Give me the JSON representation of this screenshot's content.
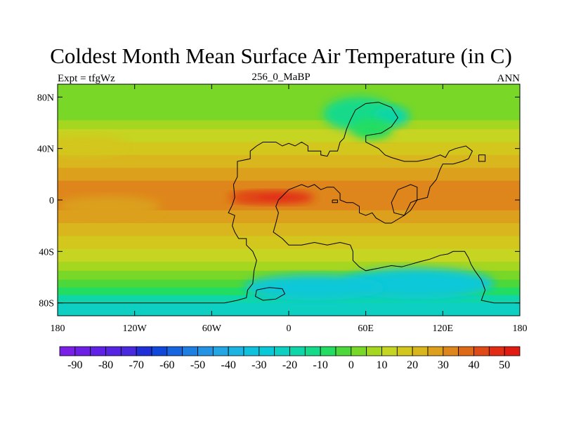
{
  "title": "Coldest Month Mean Surface Air Temperature (in C)",
  "subtitle_left": "Expt = tfgWz",
  "subtitle_center": "256_0_MaBP",
  "subtitle_right": "ANN",
  "map": {
    "lon_range": [
      -180,
      180
    ],
    "lat_range": [
      -90,
      90
    ],
    "x_ticks": [
      {
        "value": -180,
        "label": "180"
      },
      {
        "value": -120,
        "label": "120W"
      },
      {
        "value": -60,
        "label": "60W"
      },
      {
        "value": 0,
        "label": "0"
      },
      {
        "value": 60,
        "label": "60E"
      },
      {
        "value": 120,
        "label": "120E"
      },
      {
        "value": 180,
        "label": "180"
      }
    ],
    "y_ticks": [
      {
        "value": 80,
        "label": "80N"
      },
      {
        "value": 40,
        "label": "40N"
      },
      {
        "value": 0,
        "label": "0"
      },
      {
        "value": -40,
        "label": "40S"
      },
      {
        "value": -80,
        "label": "80S"
      }
    ]
  },
  "colorbar": {
    "levels": [
      -90,
      -85,
      -80,
      -75,
      -70,
      -65,
      -60,
      -55,
      -50,
      -45,
      -40,
      -35,
      -30,
      -25,
      -20,
      -15,
      -10,
      -5,
      0,
      5,
      10,
      15,
      20,
      25,
      30,
      35,
      40,
      45,
      50
    ],
    "labels": [
      "-90",
      "-80",
      "-70",
      "-60",
      "-50",
      "-40",
      "-30",
      "-20",
      "-10",
      "0",
      "10",
      "20",
      "30",
      "40",
      "50"
    ],
    "colors": [
      "#7a1fe6",
      "#6d1fe6",
      "#6020e6",
      "#5525e3",
      "#4a28df",
      "#2030d8",
      "#1048dc",
      "#1865e0",
      "#1e7fe3",
      "#2393e5",
      "#22a6e4",
      "#1cb4e2",
      "#10c1de",
      "#09c8d8",
      "#0ed0c2",
      "#0fd6a8",
      "#15da8a",
      "#22dd62",
      "#4cd83a",
      "#78d727",
      "#a5d620",
      "#c6d422",
      "#d3c61d",
      "#d9b51e",
      "#dca01c",
      "#de861b",
      "#de6a18",
      "#e04a16",
      "#e22c14",
      "#e01b12"
    ]
  },
  "field": {
    "lat_bands": [
      {
        "lat": 90,
        "value": 3
      },
      {
        "lat": 80,
        "value": 3
      },
      {
        "lat": 70,
        "value": 3
      },
      {
        "lat": 62,
        "value": 6
      },
      {
        "lat": 55,
        "value": 11
      },
      {
        "lat": 45,
        "value": 17
      },
      {
        "lat": 35,
        "value": 21
      },
      {
        "lat": 25,
        "value": 26
      },
      {
        "lat": 15,
        "value": 29
      },
      {
        "lat": 5,
        "value": 31
      },
      {
        "lat": 0,
        "value": 32
      },
      {
        "lat": -8,
        "value": 30
      },
      {
        "lat": -18,
        "value": 26
      },
      {
        "lat": -28,
        "value": 22
      },
      {
        "lat": -38,
        "value": 17
      },
      {
        "lat": -48,
        "value": 11
      },
      {
        "lat": -55,
        "value": 6
      },
      {
        "lat": -62,
        "value": 2
      },
      {
        "lat": -68,
        "value": -6
      },
      {
        "lat": -74,
        "value": -14
      },
      {
        "lat": -80,
        "value": -21
      },
      {
        "lat": -86,
        "value": -23
      },
      {
        "lat": -90,
        "value": -24
      }
    ],
    "anomalies": [
      {
        "lon": 55,
        "lat": 67,
        "rx": 28,
        "ry": 13,
        "value": -15
      },
      {
        "lon": 80,
        "lat": 65,
        "rx": 14,
        "ry": 8,
        "value": -20
      },
      {
        "lon": 65,
        "lat": 55,
        "rx": 16,
        "ry": 8,
        "value": -10
      },
      {
        "lon": 100,
        "lat": -65,
        "rx": 60,
        "ry": 12,
        "value": -30
      },
      {
        "lon": 20,
        "lat": -68,
        "rx": 55,
        "ry": 10,
        "value": -28
      },
      {
        "lon": -10,
        "lat": 2,
        "rx": 30,
        "ry": 5,
        "value": 46
      },
      {
        "lon": -35,
        "lat": 2,
        "rx": 12,
        "ry": 4,
        "value": 42
      },
      {
        "lon": -160,
        "lat": 42,
        "rx": 35,
        "ry": 8,
        "value": 18
      },
      {
        "lon": -140,
        "lat": -5,
        "rx": 40,
        "ry": 8,
        "value": 28
      }
    ]
  },
  "coastlines": [
    [
      [
        -50,
        -80
      ],
      [
        -40,
        -78
      ],
      [
        -33,
        -76
      ],
      [
        -32,
        -70
      ],
      [
        -28,
        -65
      ],
      [
        -27,
        -55
      ],
      [
        -25,
        -47
      ],
      [
        -28,
        -40
      ],
      [
        -33,
        -35
      ],
      [
        -33,
        -30
      ],
      [
        -39,
        -30
      ],
      [
        -42,
        -25
      ],
      [
        -44,
        -20
      ],
      [
        -42,
        -12
      ],
      [
        -47,
        -10
      ],
      [
        -44,
        -4
      ],
      [
        -42,
        2
      ],
      [
        -43,
        12
      ],
      [
        -40,
        18
      ],
      [
        -40,
        30
      ],
      [
        -30,
        32
      ],
      [
        -30,
        38
      ],
      [
        -25,
        42
      ],
      [
        -20,
        45
      ],
      [
        -10,
        45
      ],
      [
        -5,
        42
      ],
      [
        0,
        44
      ],
      [
        5,
        42
      ],
      [
        10,
        45
      ],
      [
        15,
        42
      ],
      [
        15,
        38
      ],
      [
        25,
        38
      ],
      [
        25,
        35
      ],
      [
        30,
        34
      ],
      [
        32,
        38
      ],
      [
        38,
        38
      ],
      [
        40,
        45
      ],
      [
        43,
        48
      ],
      [
        45,
        55
      ],
      [
        48,
        62
      ],
      [
        52,
        70
      ],
      [
        60,
        75
      ],
      [
        70,
        76
      ],
      [
        80,
        72
      ],
      [
        85,
        64
      ],
      [
        80,
        57
      ],
      [
        72,
        52
      ],
      [
        60,
        50
      ],
      [
        60,
        45
      ],
      [
        70,
        40
      ],
      [
        75,
        35
      ],
      [
        80,
        33
      ],
      [
        90,
        30
      ],
      [
        100,
        30
      ],
      [
        110,
        32
      ],
      [
        118,
        35
      ],
      [
        122,
        33
      ],
      [
        125,
        38
      ],
      [
        130,
        40
      ],
      [
        138,
        42
      ],
      [
        143,
        38
      ],
      [
        140,
        32
      ],
      [
        135,
        30
      ],
      [
        128,
        28
      ],
      [
        120,
        28
      ],
      [
        118,
        24
      ],
      [
        115,
        16
      ],
      [
        110,
        10
      ],
      [
        108,
        2
      ],
      [
        100,
        0
      ],
      [
        95,
        -2
      ],
      [
        92,
        -8
      ],
      [
        90,
        -12
      ],
      [
        85,
        -15
      ],
      [
        80,
        -18
      ],
      [
        75,
        -18
      ],
      [
        68,
        -14
      ],
      [
        65,
        -10
      ],
      [
        60,
        -12
      ],
      [
        55,
        -10
      ],
      [
        55,
        -5
      ],
      [
        50,
        -2
      ],
      [
        45,
        -2
      ],
      [
        40,
        0
      ],
      [
        40,
        5
      ],
      [
        35,
        10
      ],
      [
        30,
        10
      ],
      [
        25,
        8
      ],
      [
        20,
        12
      ],
      [
        15,
        10
      ],
      [
        10,
        12
      ],
      [
        5,
        10
      ],
      [
        0,
        8
      ],
      [
        -2,
        6
      ],
      [
        -5,
        3
      ],
      [
        -8,
        0
      ],
      [
        -10,
        -5
      ],
      [
        -8,
        -10
      ],
      [
        -10,
        -18
      ],
      [
        -12,
        -25
      ],
      [
        -5,
        -30
      ],
      [
        0,
        -35
      ],
      [
        10,
        -35
      ],
      [
        20,
        -33
      ],
      [
        30,
        -35
      ],
      [
        40,
        -33
      ],
      [
        48,
        -35
      ],
      [
        50,
        -40
      ],
      [
        50,
        -47
      ],
      [
        55,
        -52
      ],
      [
        60,
        -55
      ],
      [
        70,
        -53
      ],
      [
        80,
        -51
      ],
      [
        88,
        -52
      ],
      [
        95,
        -50
      ],
      [
        102,
        -48
      ],
      [
        110,
        -46
      ],
      [
        118,
        -43
      ],
      [
        124,
        -42
      ],
      [
        128,
        -40
      ],
      [
        137,
        -40
      ],
      [
        140,
        -45
      ],
      [
        142,
        -50
      ],
      [
        145,
        -55
      ],
      [
        150,
        -62
      ],
      [
        153,
        -70
      ],
      [
        150,
        -78
      ],
      [
        160,
        -80
      ],
      [
        180,
        -80
      ]
    ],
    [
      [
        -180,
        -80
      ],
      [
        -50,
        -80
      ]
    ],
    [
      [
        85,
        8
      ],
      [
        90,
        10
      ],
      [
        95,
        12
      ],
      [
        100,
        10
      ],
      [
        100,
        0
      ],
      [
        95,
        -8
      ],
      [
        90,
        -12
      ],
      [
        82,
        -10
      ],
      [
        80,
        -2
      ],
      [
        85,
        8
      ]
    ],
    [
      [
        -25,
        -70
      ],
      [
        -15,
        -68
      ],
      [
        -5,
        -69
      ],
      [
        -3,
        -73
      ],
      [
        -10,
        -77
      ],
      [
        -20,
        -78
      ],
      [
        -26,
        -75
      ],
      [
        -25,
        -70
      ]
    ],
    [
      [
        148,
        35
      ],
      [
        153,
        35
      ],
      [
        153,
        30
      ],
      [
        148,
        30
      ],
      [
        148,
        35
      ]
    ],
    [
      [
        34,
        0
      ],
      [
        38,
        0
      ],
      [
        38,
        -2
      ],
      [
        34,
        -2
      ],
      [
        34,
        0
      ]
    ]
  ]
}
